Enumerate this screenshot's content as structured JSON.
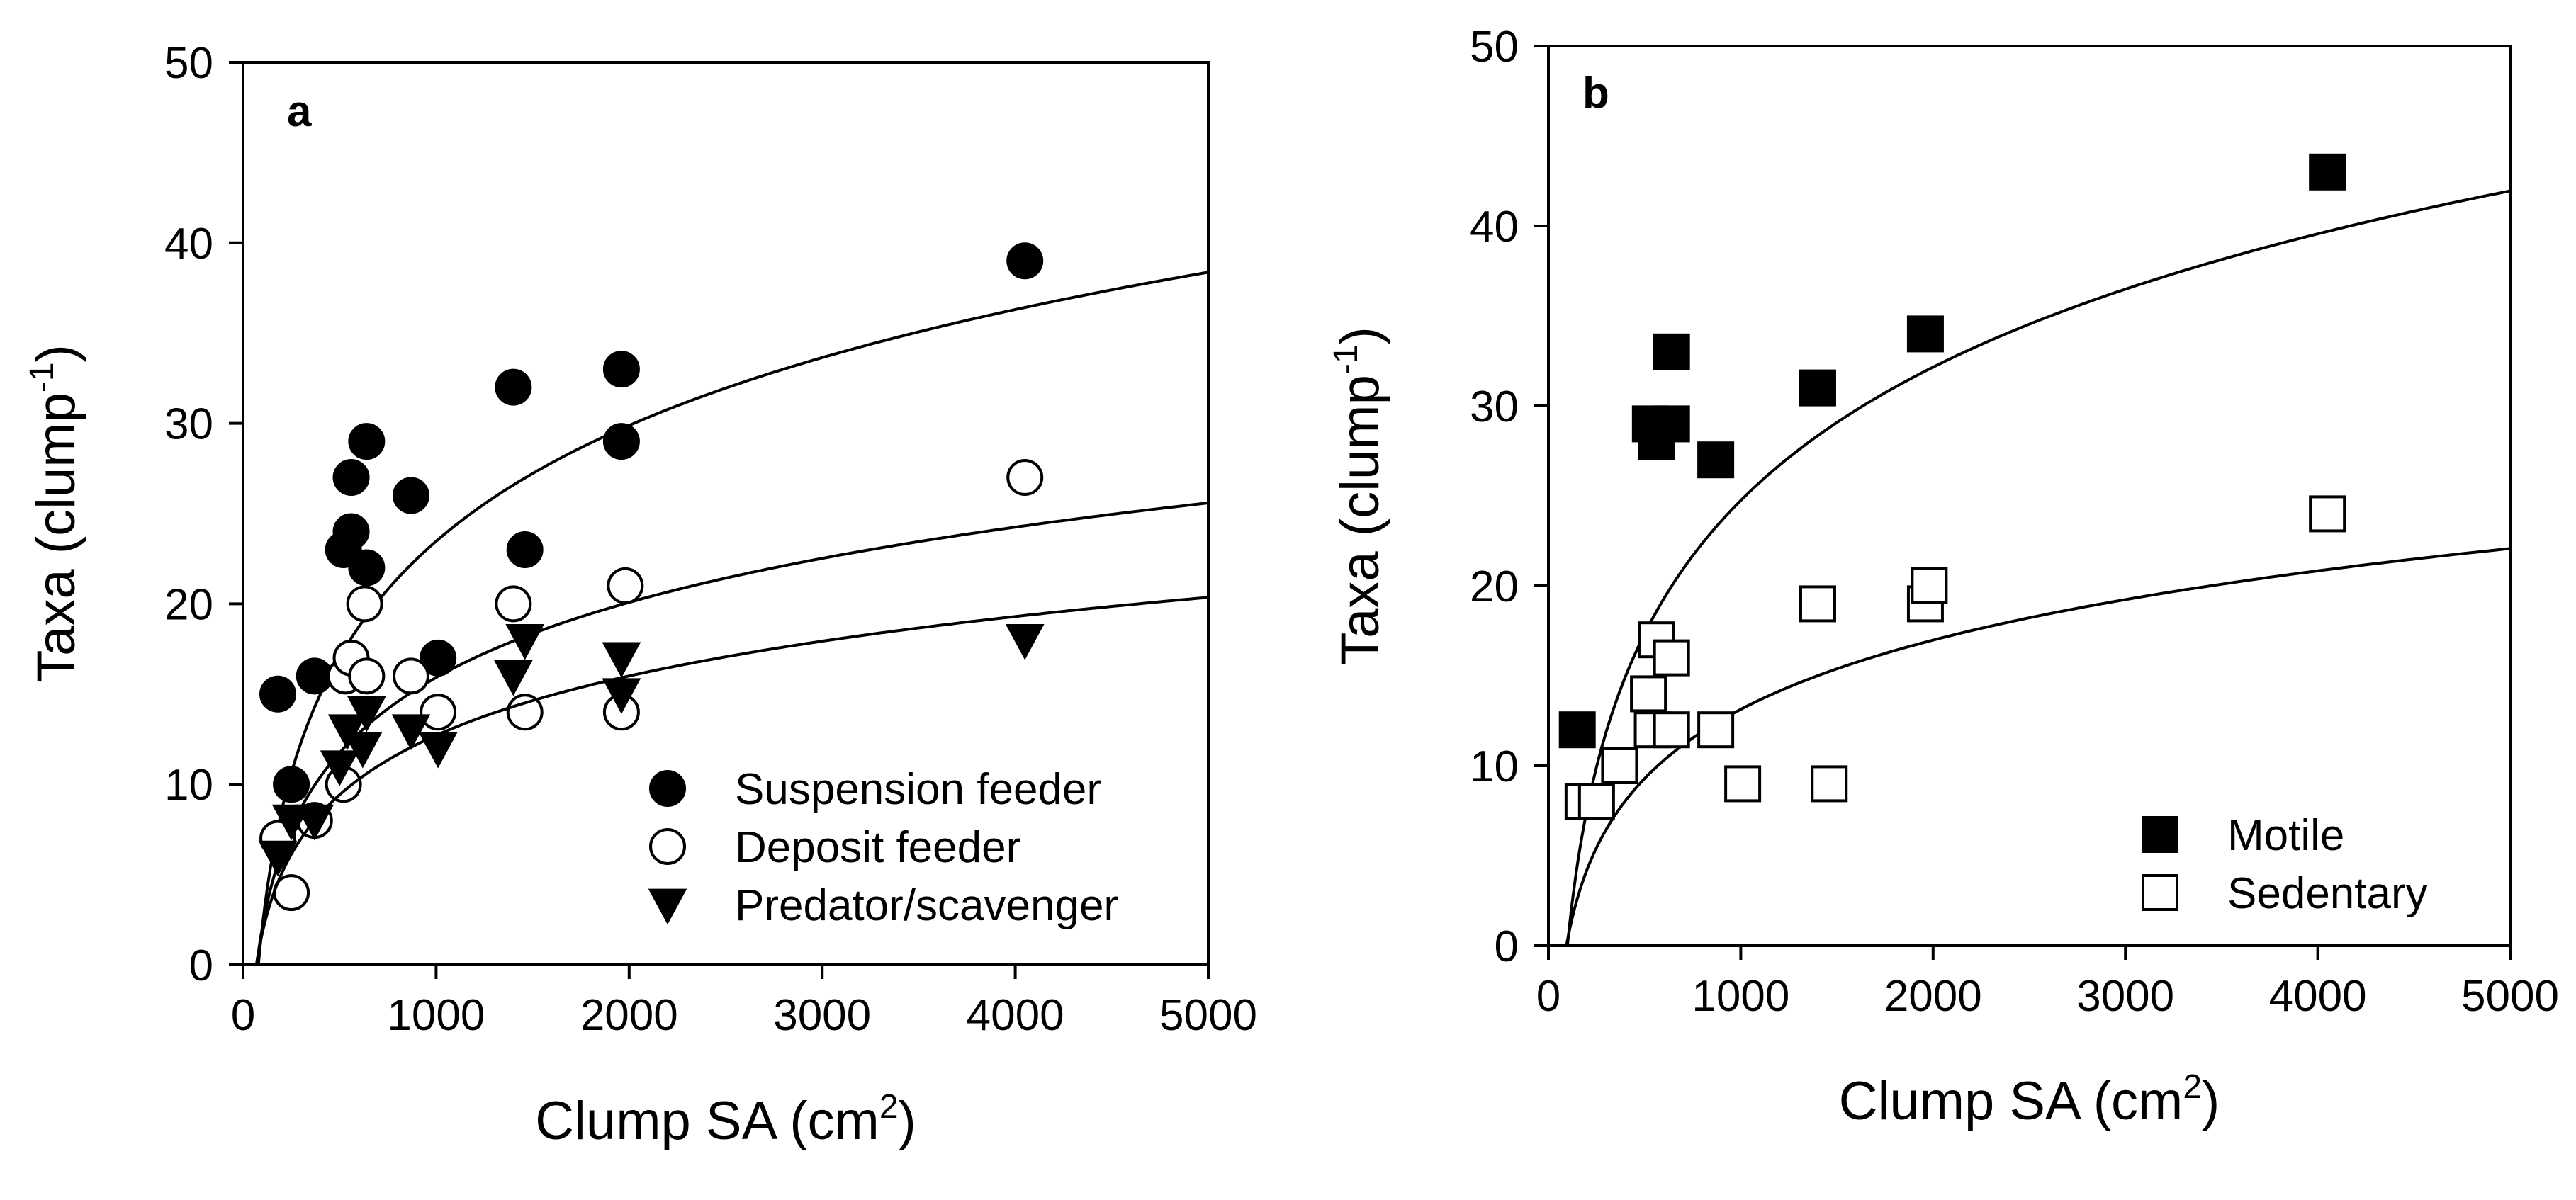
{
  "chart_data": [
    {
      "type": "scatter",
      "panel_label": "a",
      "xlabel": "Clump SA (cm",
      "xlabel_sup": "2",
      "xlabel_end": ")",
      "ylabel": "Taxa (clump",
      "ylabel_sup": "-1",
      "ylabel_end": ")",
      "xlim": [
        0,
        5000
      ],
      "ylim": [
        0,
        50
      ],
      "xticks": [
        0,
        1000,
        2000,
        3000,
        4000,
        5000
      ],
      "yticks": [
        0,
        10,
        20,
        30,
        40,
        50
      ],
      "xtick_labels": [
        "0",
        "1000",
        "2000",
        "3000",
        "4000",
        "5000"
      ],
      "ytick_labels": [
        "0",
        "10",
        "20",
        "30",
        "40",
        "50"
      ],
      "legend_position": "bottom-right",
      "series": [
        {
          "name": "Suspension feeder",
          "marker": "filled-circle",
          "fit": {
            "form": "log",
            "a": 9.26,
            "b": -40.5
          },
          "points": [
            [
              180,
              15
            ],
            [
              250,
              10
            ],
            [
              370,
              16
            ],
            [
              520,
              23
            ],
            [
              560,
              24
            ],
            [
              560,
              27
            ],
            [
              640,
              22
            ],
            [
              640,
              29
            ],
            [
              870,
              26
            ],
            [
              1010,
              17
            ],
            [
              1400,
              32
            ],
            [
              1460,
              23
            ],
            [
              1960,
              33
            ],
            [
              1960,
              29
            ],
            [
              4050,
              39
            ]
          ]
        },
        {
          "name": "Deposit feeder",
          "marker": "open-circle",
          "fit": {
            "form": "log",
            "a": 6.01,
            "b": -25.6
          },
          "points": [
            [
              180,
              7
            ],
            [
              250,
              4
            ],
            [
              370,
              8
            ],
            [
              520,
              10
            ],
            [
              530,
              16
            ],
            [
              560,
              17
            ],
            [
              630,
              20
            ],
            [
              640,
              16
            ],
            [
              870,
              16
            ],
            [
              1010,
              14
            ],
            [
              1400,
              20
            ],
            [
              1460,
              14
            ],
            [
              1960,
              14
            ],
            [
              1980,
              21
            ],
            [
              4050,
              27
            ]
          ]
        },
        {
          "name": "Predator/scavenger",
          "marker": "filled-triangle-down",
          "fit": {
            "form": "log",
            "a": 4.75,
            "b": -20.1
          },
          "points": [
            [
              180,
              6
            ],
            [
              250,
              8
            ],
            [
              370,
              8
            ],
            [
              500,
              11
            ],
            [
              540,
              13
            ],
            [
              620,
              12
            ],
            [
              640,
              14
            ],
            [
              870,
              13
            ],
            [
              1010,
              12
            ],
            [
              1400,
              16
            ],
            [
              1460,
              18
            ],
            [
              1960,
              15
            ],
            [
              1960,
              17
            ],
            [
              4050,
              18
            ]
          ]
        }
      ]
    },
    {
      "type": "scatter",
      "panel_label": "b",
      "xlabel": "Clump SA (cm",
      "xlabel_sup": "2",
      "xlabel_end": ")",
      "ylabel": "Taxa (clump",
      "ylabel_sup": "-1",
      "ylabel_end": ")",
      "xlim": [
        0,
        5000
      ],
      "ylim": [
        0,
        50
      ],
      "xticks": [
        0,
        1000,
        2000,
        3000,
        4000,
        5000
      ],
      "yticks": [
        0,
        10,
        20,
        30,
        40,
        50
      ],
      "xtick_labels": [
        "0",
        "1000",
        "2000",
        "3000",
        "4000",
        "5000"
      ],
      "ytick_labels": [
        "0",
        "10",
        "20",
        "30",
        "40",
        "50"
      ],
      "legend_position": "bottom-right",
      "series": [
        {
          "name": "Motile",
          "marker": "filled-square",
          "fit": {
            "form": "log",
            "a": 10.69,
            "b": -49.1
          },
          "points": [
            [
              150,
              12
            ],
            [
              530,
              29
            ],
            [
              560,
              28
            ],
            [
              640,
              29
            ],
            [
              640,
              33
            ],
            [
              870,
              27
            ],
            [
              1400,
              31
            ],
            [
              1960,
              34
            ],
            [
              4050,
              43
            ]
          ]
        },
        {
          "name": "Sedentary",
          "marker": "open-square",
          "fit": {
            "form": "log",
            "a": 5.55,
            "b": -25.2
          },
          "points": [
            [
              180,
              8
            ],
            [
              250,
              8
            ],
            [
              370,
              10
            ],
            [
              520,
              14
            ],
            [
              540,
              12
            ],
            [
              560,
              17
            ],
            [
              640,
              16
            ],
            [
              640,
              12
            ],
            [
              870,
              12
            ],
            [
              1010,
              9
            ],
            [
              1400,
              19
            ],
            [
              1460,
              9
            ],
            [
              1960,
              19
            ],
            [
              1980,
              20
            ],
            [
              4050,
              24
            ]
          ]
        }
      ]
    }
  ]
}
